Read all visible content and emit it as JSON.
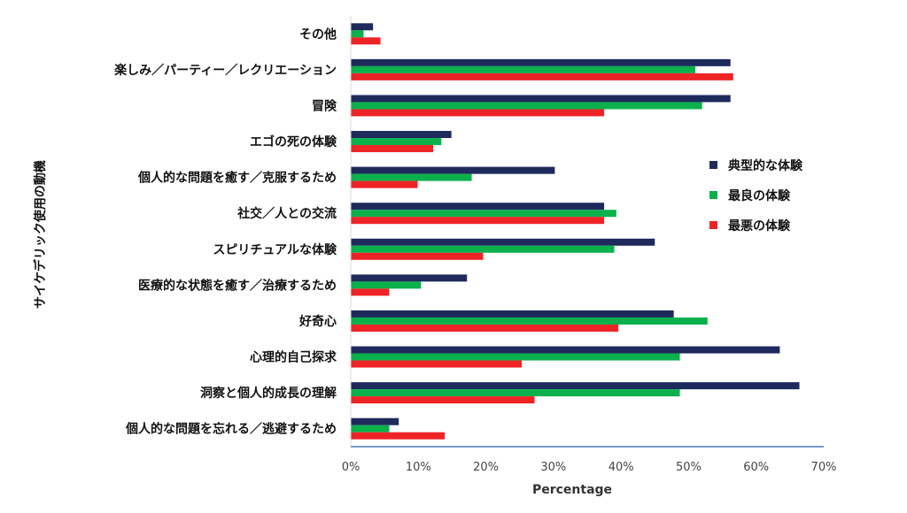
{
  "chart_data": {
    "type": "bar",
    "orientation": "horizontal",
    "title": "",
    "xlabel": "Percentage",
    "ylabel": "サイケデリック使用の動機",
    "xlim": [
      0,
      70
    ],
    "xticks": [
      "0%",
      "10%",
      "20%",
      "30%",
      "40%",
      "50%",
      "60%",
      "70%"
    ],
    "grid": false,
    "legend_position": "right",
    "categories": [
      "その他",
      "楽しみ／パーティー／レクリエーション",
      "冒険",
      "エゴの死の体験",
      "個人的な問題を癒す／克服するため",
      "社交／人との交流",
      "スピリチュアルな体験",
      "医療的な状態を癒す／治療するため",
      "好奇心",
      "心理的自己探求",
      "洞察と個人的成長の理解",
      "個人的な問題を忘れる／逃避するため"
    ],
    "series": [
      {
        "name": "典型的な体験",
        "color": "#1f2a5c",
        "values": [
          3.3,
          56.2,
          56.2,
          14.9,
          30.2,
          37.5,
          45.0,
          17.2,
          47.8,
          63.5,
          66.4,
          7.1
        ]
      },
      {
        "name": "最良の体験",
        "color": "#0ab04b",
        "values": [
          1.9,
          51.0,
          52.0,
          13.4,
          17.9,
          39.3,
          39.0,
          10.4,
          52.8,
          48.7,
          48.7,
          5.7
        ]
      },
      {
        "name": "最悪の体験",
        "color": "#ee2326",
        "values": [
          4.4,
          56.6,
          37.5,
          12.2,
          9.9,
          37.5,
          19.6,
          5.7,
          39.6,
          25.3,
          27.2,
          13.9
        ]
      }
    ]
  }
}
